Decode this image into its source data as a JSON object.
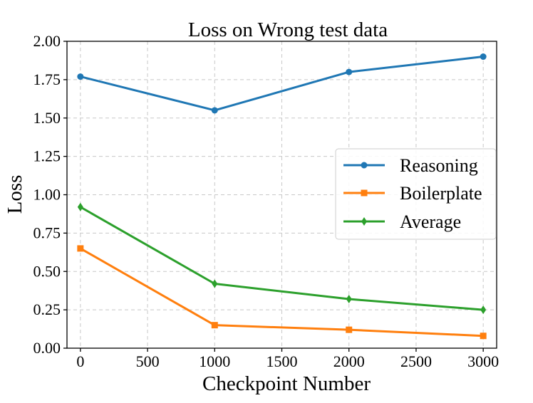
{
  "chart_data": {
    "type": "line",
    "title": "Loss on Wrong test data",
    "xlabel": "Checkpoint Number",
    "ylabel": "Loss",
    "x": [
      0,
      1000,
      2000,
      3000
    ],
    "xlim": [
      -100,
      3100
    ],
    "ylim": [
      0,
      2.0
    ],
    "xticks": [
      0,
      500,
      1000,
      1500,
      2000,
      2500,
      3000
    ],
    "yticks": [
      0,
      0.25,
      0.5,
      0.75,
      1.0,
      1.25,
      1.5,
      1.75,
      2.0
    ],
    "xtick_labels": [
      "0",
      "500",
      "1000",
      "1500",
      "2000",
      "2500",
      "3000"
    ],
    "ytick_labels": [
      "0.00",
      "0.25",
      "0.50",
      "0.75",
      "1.00",
      "1.25",
      "1.50",
      "1.75",
      "2.00"
    ],
    "grid": true,
    "legend_position": "center-right",
    "series": [
      {
        "name": "Reasoning",
        "values": [
          1.77,
          1.55,
          1.8,
          1.9
        ],
        "color": "#1f77b4",
        "marker": "circle"
      },
      {
        "name": "Boilerplate",
        "values": [
          0.65,
          0.15,
          0.12,
          0.08
        ],
        "color": "#ff7f0e",
        "marker": "square"
      },
      {
        "name": "Average",
        "values": [
          0.92,
          0.42,
          0.32,
          0.25
        ],
        "color": "#2ca02c",
        "marker": "diamond"
      }
    ]
  }
}
